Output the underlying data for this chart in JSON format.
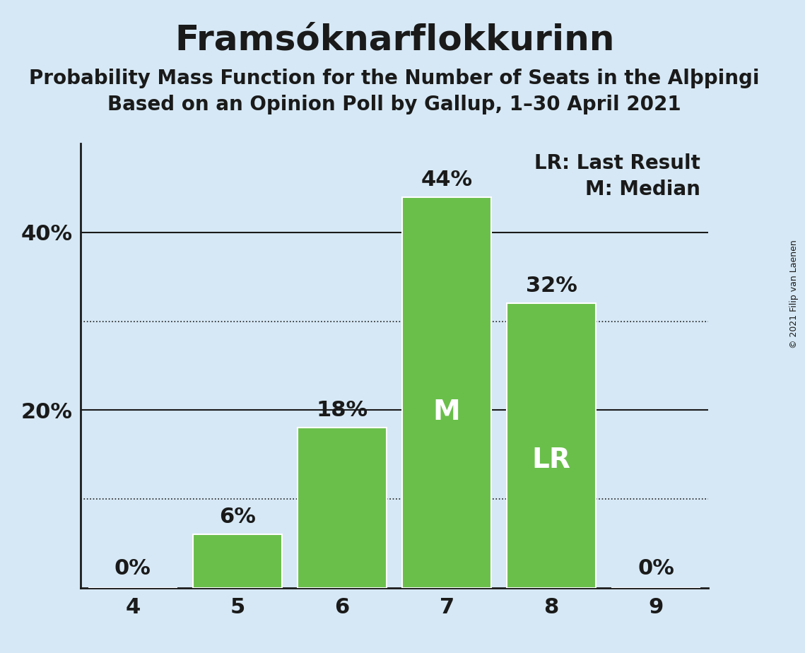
{
  "title": "Framsóknarflokkurinn",
  "subtitle1": "Probability Mass Function for the Number of Seats in the Alþpingi",
  "subtitle2": "Based on an Opinion Poll by Gallup, 1–30 April 2021",
  "copyright": "© 2021 Filip van Laenen",
  "categories": [
    4,
    5,
    6,
    7,
    8,
    9
  ],
  "values": [
    0,
    6,
    18,
    44,
    32,
    0
  ],
  "bar_color": "#6abf4b",
  "bar_edge_color": "#ffffff",
  "background_color": "#d6e8f5",
  "text_color": "#1a1a1a",
  "median_seat": 7,
  "last_result_seat": 8,
  "legend_lr": "LR: Last Result",
  "legend_m": "M: Median",
  "median_label": "M",
  "lr_label": "LR",
  "ylim": [
    0,
    50
  ],
  "solid_yticks": [
    20,
    40
  ],
  "dotted_yticks": [
    10,
    30
  ],
  "title_fontsize": 36,
  "subtitle_fontsize": 20,
  "bar_label_fontsize": 22,
  "inner_label_fontsize": 28,
  "tick_fontsize": 22,
  "legend_fontsize": 20
}
